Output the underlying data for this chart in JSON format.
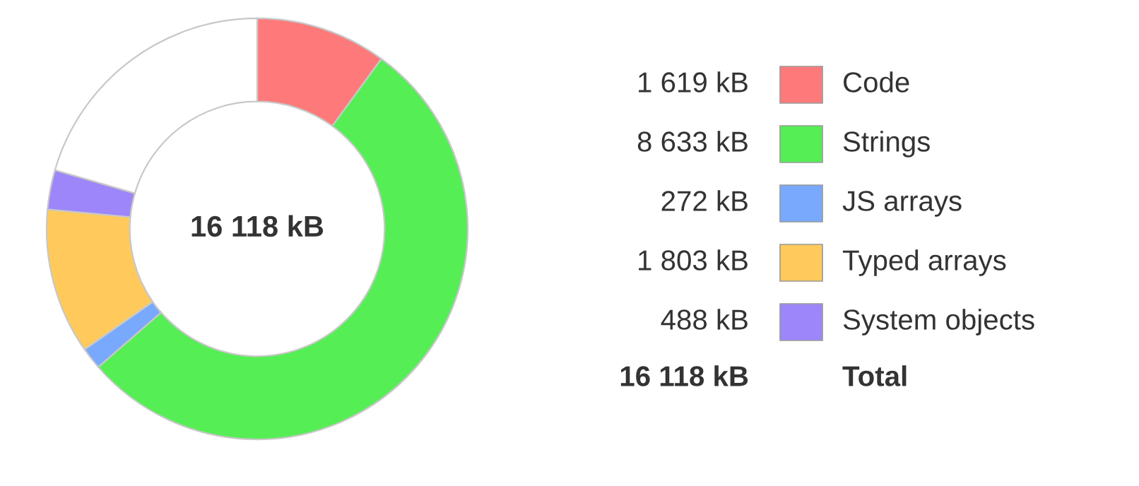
{
  "chart_data": {
    "type": "donut",
    "categories": [
      "Code",
      "Strings",
      "JS arrays",
      "Typed arrays",
      "System objects",
      null
    ],
    "values": [
      1619,
      8633,
      272,
      1803,
      488,
      3303
    ],
    "colors": [
      "#fe7a7a",
      "#55ee55",
      "#78a9fc",
      "#ffca5b",
      "#9d86fa",
      "#ffffff"
    ],
    "value_labels": [
      "1 619 kB",
      "8 633 kB",
      "272 kB",
      "1 803 kB",
      "488 kB",
      null
    ],
    "annotations": [
      "16 118 kB",
      "16 118 kB",
      "Total"
    ],
    "legend": "right"
  }
}
